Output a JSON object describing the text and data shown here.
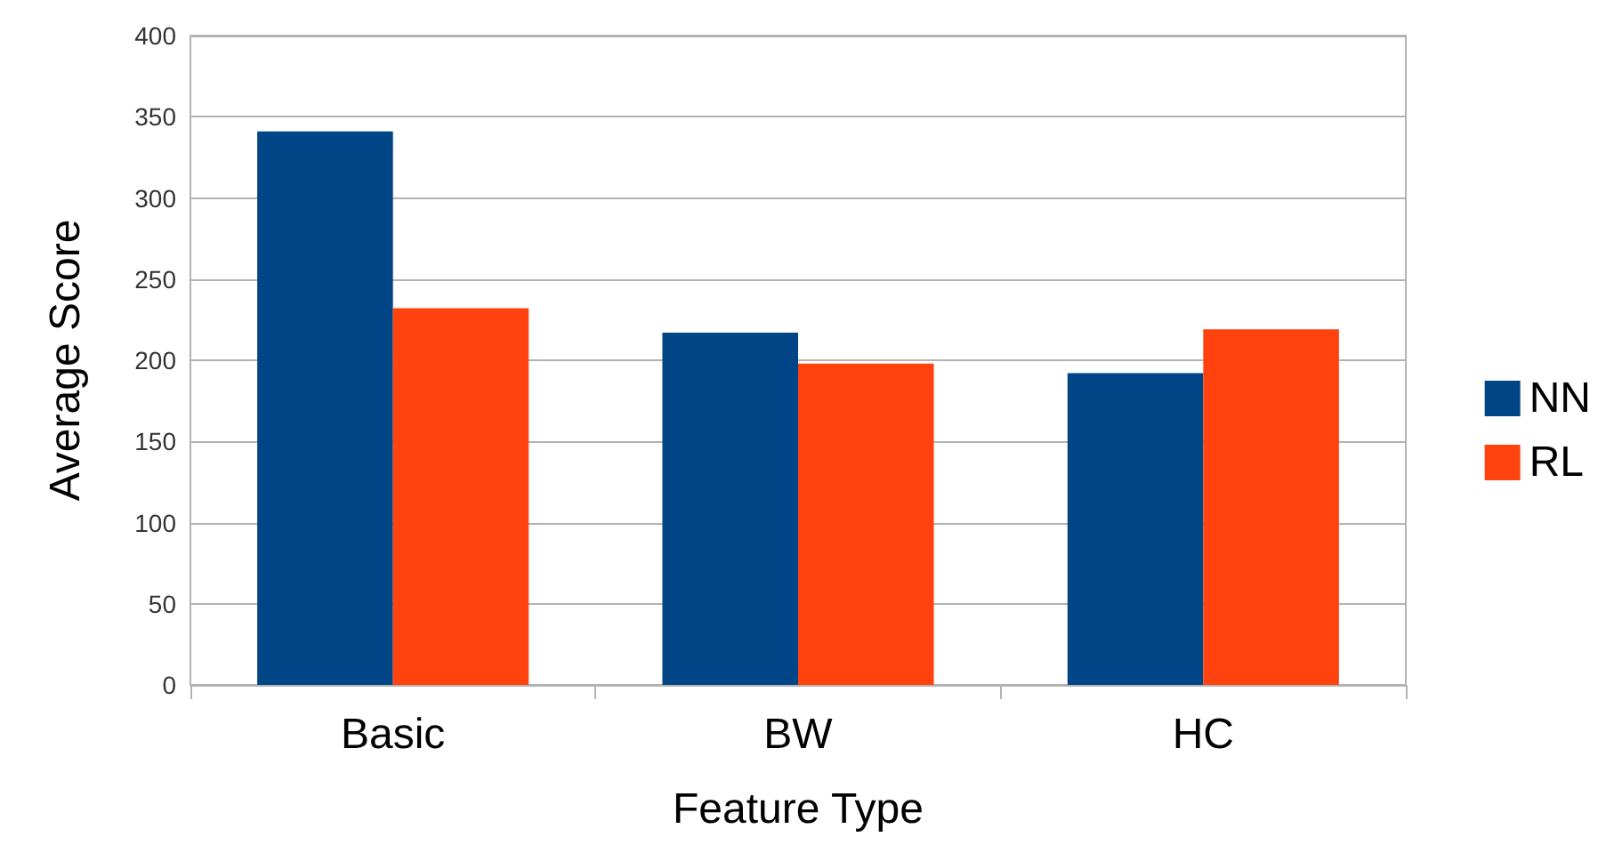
{
  "chart_data": {
    "type": "bar",
    "xlabel": "Feature Type",
    "ylabel": "Average Score",
    "categories": [
      "Basic",
      "BW",
      "HC"
    ],
    "series": [
      {
        "name": "NN",
        "color": "#004586",
        "values": [
          341,
          217,
          192
        ]
      },
      {
        "name": "RL",
        "color": "#ff420e",
        "values": [
          232,
          198,
          219
        ]
      }
    ],
    "ylim": [
      0,
      400
    ],
    "yticks": [
      0,
      50,
      100,
      150,
      200,
      250,
      300,
      350,
      400
    ],
    "grid": "y",
    "legend": "right"
  }
}
